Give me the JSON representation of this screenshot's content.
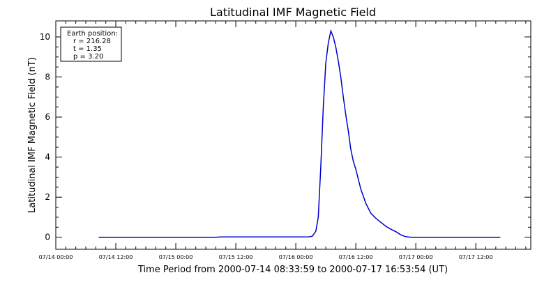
{
  "chart_data": {
    "type": "line",
    "title": "Latitudinal IMF Magnetic Field",
    "xlabel": "Time Period from 2000-07-14 08:33:59 to 2000-07-17 16:53:54 (UT)",
    "ylabel": "Latitudinal IMF Magnetic Field (nT)",
    "x_unit": "hours since 07/14 00:00",
    "xlim": [
      0,
      95
    ],
    "ylim": [
      -0.6,
      10.8
    ],
    "x_ticks": [
      {
        "value": 0,
        "label": "07/14 00:00"
      },
      {
        "value": 12,
        "label": "07/14 12:00"
      },
      {
        "value": 24,
        "label": "07/15 00:00"
      },
      {
        "value": 36,
        "label": "07/15 12:00"
      },
      {
        "value": 48,
        "label": "07/16 00:00"
      },
      {
        "value": 60,
        "label": "07/16 12:00"
      },
      {
        "value": 72,
        "label": "07/17 00:00"
      },
      {
        "value": 84,
        "label": "07/17 12:00"
      }
    ],
    "y_ticks": [
      0,
      2,
      4,
      6,
      8,
      10
    ],
    "legend_box": {
      "heading": "Earth position:",
      "lines": [
        "r = 216.28",
        "t = 1.35",
        "p = 3.20"
      ],
      "placement": "top-left"
    },
    "series": [
      {
        "color": "#0000cc",
        "points": [
          [
            8.57,
            0.0
          ],
          [
            20.0,
            0.0
          ],
          [
            32.0,
            0.0
          ],
          [
            33.0,
            0.02
          ],
          [
            40.0,
            0.02
          ],
          [
            50.5,
            0.02
          ],
          [
            51.3,
            0.05
          ],
          [
            52.0,
            0.3
          ],
          [
            52.5,
            1.0
          ],
          [
            53.0,
            3.5
          ],
          [
            53.5,
            6.5
          ],
          [
            54.0,
            8.7
          ],
          [
            54.5,
            9.7
          ],
          [
            55.0,
            10.3
          ],
          [
            55.5,
            10.0
          ],
          [
            56.0,
            9.5
          ],
          [
            56.5,
            8.8
          ],
          [
            57.0,
            8.0
          ],
          [
            57.5,
            7.0
          ],
          [
            58.0,
            6.1
          ],
          [
            58.5,
            5.3
          ],
          [
            59.0,
            4.4
          ],
          [
            59.5,
            3.8
          ],
          [
            60.0,
            3.4
          ],
          [
            60.5,
            2.9
          ],
          [
            61.0,
            2.4
          ],
          [
            61.5,
            2.05
          ],
          [
            62.0,
            1.7
          ],
          [
            62.5,
            1.45
          ],
          [
            63.0,
            1.2
          ],
          [
            64.0,
            0.95
          ],
          [
            65.0,
            0.75
          ],
          [
            66.0,
            0.55
          ],
          [
            67.0,
            0.4
          ],
          [
            68.0,
            0.28
          ],
          [
            69.0,
            0.12
          ],
          [
            70.0,
            0.03
          ],
          [
            71.0,
            0.0
          ],
          [
            78.0,
            0.0
          ],
          [
            88.9,
            0.0
          ]
        ]
      }
    ]
  }
}
